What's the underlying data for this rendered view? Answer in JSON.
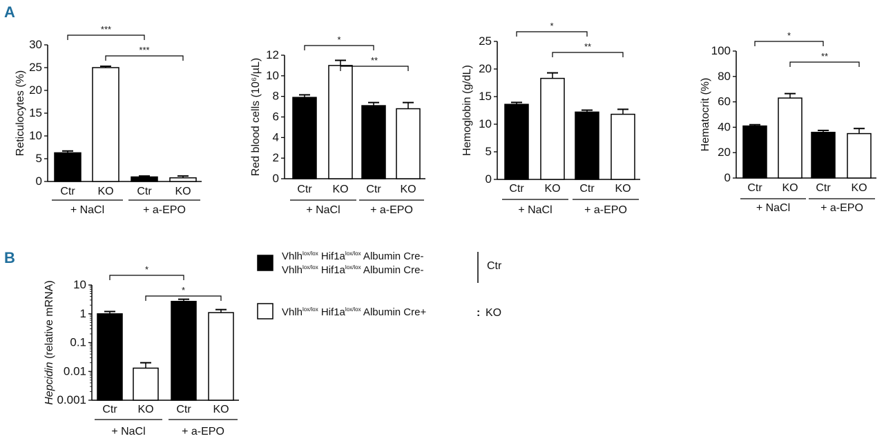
{
  "figure": {
    "panel_a_label": "A",
    "panel_b_label": "B"
  },
  "legend": {
    "ctr_line1": {
      "prefix": "Vhlh",
      "sup1": "lox/lox",
      "mid": " Hif1a",
      "sup2": "lox/lox",
      "suffix": " Albumin Cre-"
    },
    "ctr_line2": {
      "prefix": "Vhlh",
      "sup1": "lox/lox",
      "mid": " Hif1a",
      "sup2": "lox/lox",
      "suffix": " Albumin Cre-"
    },
    "ko_line": {
      "prefix": "Vhlh",
      "sup1": "lox/lox",
      "mid": " Hif1a",
      "sup2": "lox/lox",
      "suffix": " Albumin Cre+"
    },
    "ctr_label": "Ctr",
    "ko_label": "KO",
    "ctr_color": "#000000",
    "ko_color": "#ffffff"
  },
  "chart_data": [
    {
      "panel": "A",
      "type": "bar",
      "ylabel": "Reticulocytes (%)",
      "ylim": [
        0,
        30
      ],
      "yticks": [
        "0",
        "5",
        "10",
        "15",
        "20",
        "25",
        "30"
      ],
      "categories": [
        "Ctr",
        "KO",
        "Ctr",
        "KO"
      ],
      "groups": [
        "+ NaCl",
        "+ a-EPO"
      ],
      "values": [
        6.3,
        25.0,
        1.0,
        0.8
      ],
      "errors": [
        0.4,
        0.3,
        0.2,
        0.4
      ],
      "fills": [
        "#000000",
        "#ffffff",
        "#000000",
        "#ffffff"
      ],
      "significance": [
        {
          "from": 0,
          "to": 2,
          "label": "***"
        },
        {
          "from": 1,
          "to": 3,
          "label": "***"
        }
      ]
    },
    {
      "panel": "A",
      "type": "bar",
      "ylabel": "Red blood cells (10⁶/µL)",
      "ylim": [
        0,
        12
      ],
      "yticks": [
        "0",
        "2",
        "4",
        "6",
        "8",
        "10",
        "12"
      ],
      "categories": [
        "Ctr",
        "KO",
        "Ctr",
        "KO"
      ],
      "groups": [
        "+ NaCl",
        "+ a-EPO"
      ],
      "values": [
        7.9,
        11.0,
        7.1,
        6.8
      ],
      "errors": [
        0.25,
        0.5,
        0.3,
        0.6
      ],
      "fills": [
        "#000000",
        "#ffffff",
        "#000000",
        "#ffffff"
      ],
      "significance": [
        {
          "from": 0,
          "to": 2,
          "label": "*"
        },
        {
          "from": 1,
          "to": 3,
          "label": "**"
        }
      ]
    },
    {
      "panel": "A",
      "type": "bar",
      "ylabel": "Hemoglobin (g/dL)",
      "ylim": [
        0,
        25
      ],
      "yticks": [
        "0",
        "5",
        "10",
        "15",
        "20",
        "25"
      ],
      "categories": [
        "Ctr",
        "KO",
        "Ctr",
        "KO"
      ],
      "groups": [
        "+ NaCl",
        "+ a-EPO"
      ],
      "values": [
        13.6,
        18.3,
        12.2,
        11.8
      ],
      "errors": [
        0.35,
        1.0,
        0.35,
        0.9
      ],
      "fills": [
        "#000000",
        "#ffffff",
        "#000000",
        "#ffffff"
      ],
      "significance": [
        {
          "from": 0,
          "to": 2,
          "label": "*"
        },
        {
          "from": 1,
          "to": 3,
          "label": "**"
        }
      ]
    },
    {
      "panel": "A",
      "type": "bar",
      "ylabel": "Hematocrit (%)",
      "ylim": [
        0,
        100
      ],
      "yticks": [
        "0",
        "20",
        "40",
        "60",
        "80",
        "100"
      ],
      "categories": [
        "Ctr",
        "KO",
        "Ctr",
        "KO"
      ],
      "groups": [
        "+ NaCl",
        "+ a-EPO"
      ],
      "values": [
        41,
        63,
        36,
        35
      ],
      "errors": [
        1.0,
        3.5,
        1.5,
        4.0
      ],
      "fills": [
        "#000000",
        "#ffffff",
        "#000000",
        "#ffffff"
      ],
      "significance": [
        {
          "from": 0,
          "to": 2,
          "label": "*"
        },
        {
          "from": 1,
          "to": 3,
          "label": "**"
        }
      ]
    },
    {
      "panel": "B",
      "type": "bar",
      "scale": "log",
      "ylabel_italic": "Hepcidin",
      "ylabel_rest": " (relative mRNA)",
      "ylim": [
        0.001,
        10
      ],
      "yticks": [
        "0.001",
        "0.01",
        "0.1",
        "1",
        "10"
      ],
      "categories": [
        "Ctr",
        "KO",
        "Ctr",
        "KO"
      ],
      "groups": [
        "+ NaCl",
        "+ a-EPO"
      ],
      "values": [
        1.0,
        0.013,
        2.7,
        1.1
      ],
      "errors_upper": [
        1.2,
        0.02,
        3.2,
        1.4
      ],
      "fills": [
        "#000000",
        "#ffffff",
        "#000000",
        "#ffffff"
      ],
      "significance": [
        {
          "from": 0,
          "to": 2,
          "label": "*"
        },
        {
          "from": 1,
          "to": 3,
          "label": "*"
        }
      ]
    }
  ]
}
